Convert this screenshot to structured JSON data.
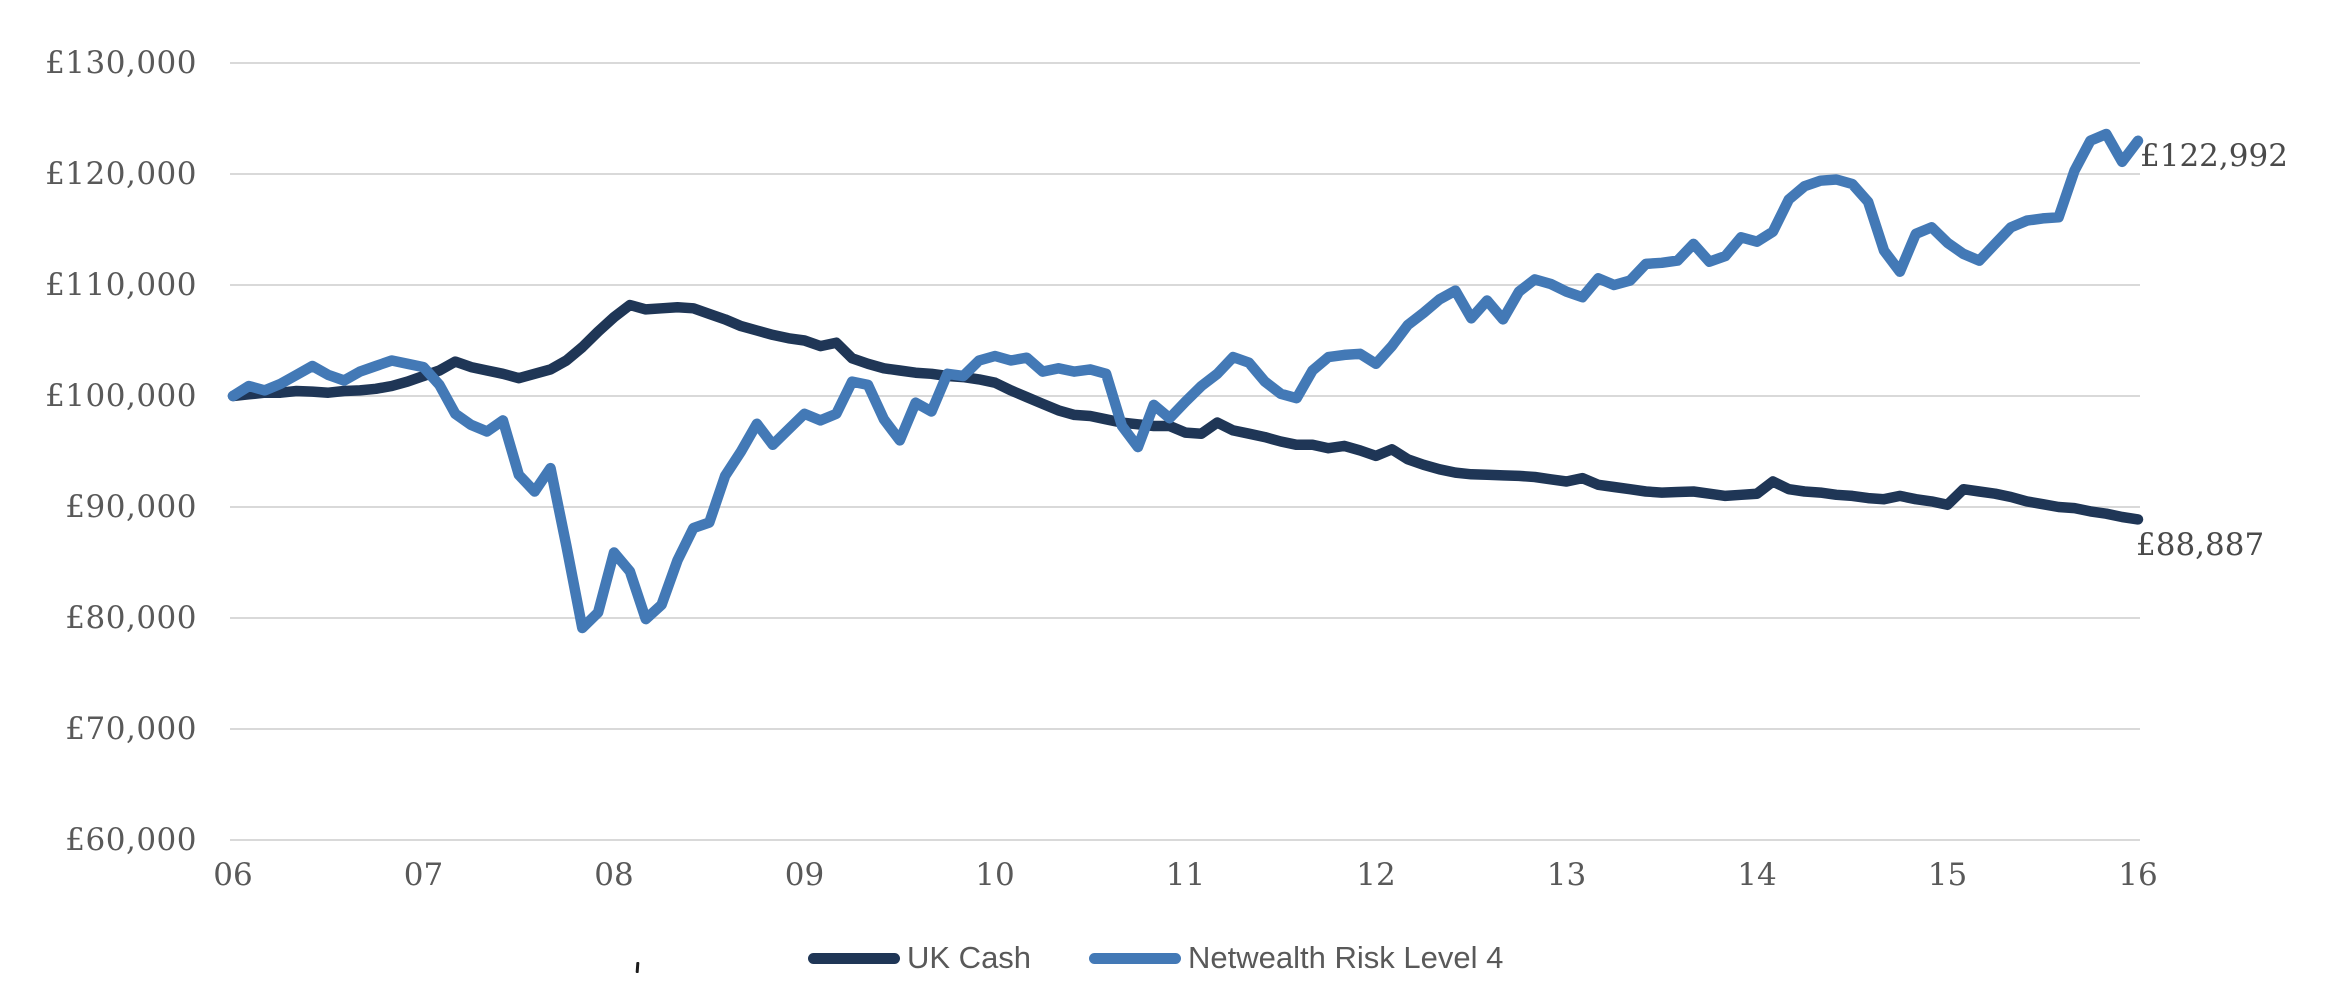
{
  "chart_data": {
    "type": "line",
    "title": "",
    "xlabel": "",
    "ylabel": "",
    "currency": "GBP",
    "grid": "horizontal",
    "legend_position": "bottom-center",
    "ylim": [
      60000,
      130000
    ],
    "y_ticks": [
      60000,
      70000,
      80000,
      90000,
      100000,
      110000,
      120000,
      130000
    ],
    "y_tick_labels": [
      "£60,000",
      "£70,000",
      "£80,000",
      "£90,000",
      "£100,000",
      "£110,000",
      "£120,000",
      "£130,000"
    ],
    "x_tick_labels": [
      "06",
      "07",
      "08",
      "09",
      "10",
      "11",
      "12",
      "13",
      "14",
      "15",
      "16"
    ],
    "x_unit": "year (2006-2016), monthly points",
    "series": [
      {
        "name": "UK Cash",
        "color": "#1F3656",
        "end_label": "£88,887",
        "end_value": 88887,
        "values": [
          100000,
          100150,
          100300,
          100300,
          100450,
          100400,
          100300,
          100450,
          100500,
          100650,
          100900,
          101300,
          101800,
          102300,
          103100,
          102600,
          102300,
          102000,
          101600,
          102000,
          102400,
          103200,
          104400,
          105800,
          107100,
          108200,
          107800,
          107900,
          108000,
          107900,
          107400,
          106900,
          106300,
          105900,
          105500,
          105200,
          105000,
          104500,
          104800,
          103400,
          102900,
          102500,
          102300,
          102100,
          102000,
          101800,
          101700,
          101500,
          101200,
          100500,
          99900,
          99300,
          98700,
          98300,
          98200,
          97900,
          97600,
          97450,
          97300,
          97300,
          96700,
          96600,
          97600,
          96900,
          96600,
          96300,
          95900,
          95600,
          95600,
          95300,
          95500,
          95100,
          94600,
          95200,
          94300,
          93800,
          93400,
          93100,
          92950,
          92900,
          92850,
          92800,
          92700,
          92500,
          92300,
          92600,
          92000,
          91800,
          91600,
          91400,
          91300,
          91350,
          91400,
          91200,
          91000,
          91100,
          91200,
          92300,
          91600,
          91400,
          91300,
          91100,
          91000,
          90800,
          90700,
          91000,
          90700,
          90500,
          90200,
          91600,
          91400,
          91200,
          90900,
          90500,
          90250,
          90000,
          89900,
          89600,
          89400,
          89100,
          88887
        ]
      },
      {
        "name": "Netwealth Risk Level 4",
        "color": "#4379B6",
        "end_label": "£122,992",
        "end_value": 122992,
        "values": [
          100000,
          100900,
          100500,
          101100,
          101900,
          102700,
          101900,
          101400,
          102200,
          102700,
          103200,
          102900,
          102600,
          101000,
          98400,
          97400,
          96800,
          97800,
          92900,
          91400,
          93500,
          86500,
          79100,
          80500,
          85900,
          84200,
          79900,
          81200,
          85200,
          88100,
          88600,
          92800,
          95000,
          97500,
          95600,
          97000,
          98400,
          97800,
          98400,
          101300,
          101000,
          97900,
          96000,
          99400,
          98600,
          102000,
          101800,
          103200,
          103600,
          103200,
          103450,
          102200,
          102500,
          102200,
          102400,
          102000,
          97300,
          95400,
          99200,
          98000,
          99500,
          100900,
          102000,
          103500,
          103000,
          101300,
          100200,
          99800,
          102300,
          103500,
          103700,
          103800,
          102900,
          104500,
          106400,
          107500,
          108700,
          109500,
          107000,
          108600,
          106900,
          109400,
          110500,
          110100,
          109400,
          108900,
          110600,
          110000,
          110400,
          111900,
          112000,
          112200,
          113700,
          112100,
          112600,
          114300,
          113900,
          114800,
          117700,
          118900,
          119400,
          119500,
          119100,
          117500,
          113100,
          111200,
          114600,
          115200,
          113800,
          112800,
          112200,
          113700,
          115200,
          115800,
          116000,
          116100,
          120300,
          123000,
          123600,
          121100,
          122992
        ]
      }
    ],
    "style": {
      "gridline_color": "#D9D9D9",
      "axis_label_color": "#595959",
      "end_label_color": "#4a4a4a",
      "background": "#FFFFFF",
      "line_width": 10.5
    }
  },
  "legend": {
    "items": [
      {
        "label": "UK Cash",
        "color": "#1F3656"
      },
      {
        "label": "Netwealth Risk Level 4",
        "color": "#4379B6"
      }
    ]
  },
  "annotations": {
    "netwealth_end": "£122,992",
    "ukcash_end": "£88,887"
  }
}
